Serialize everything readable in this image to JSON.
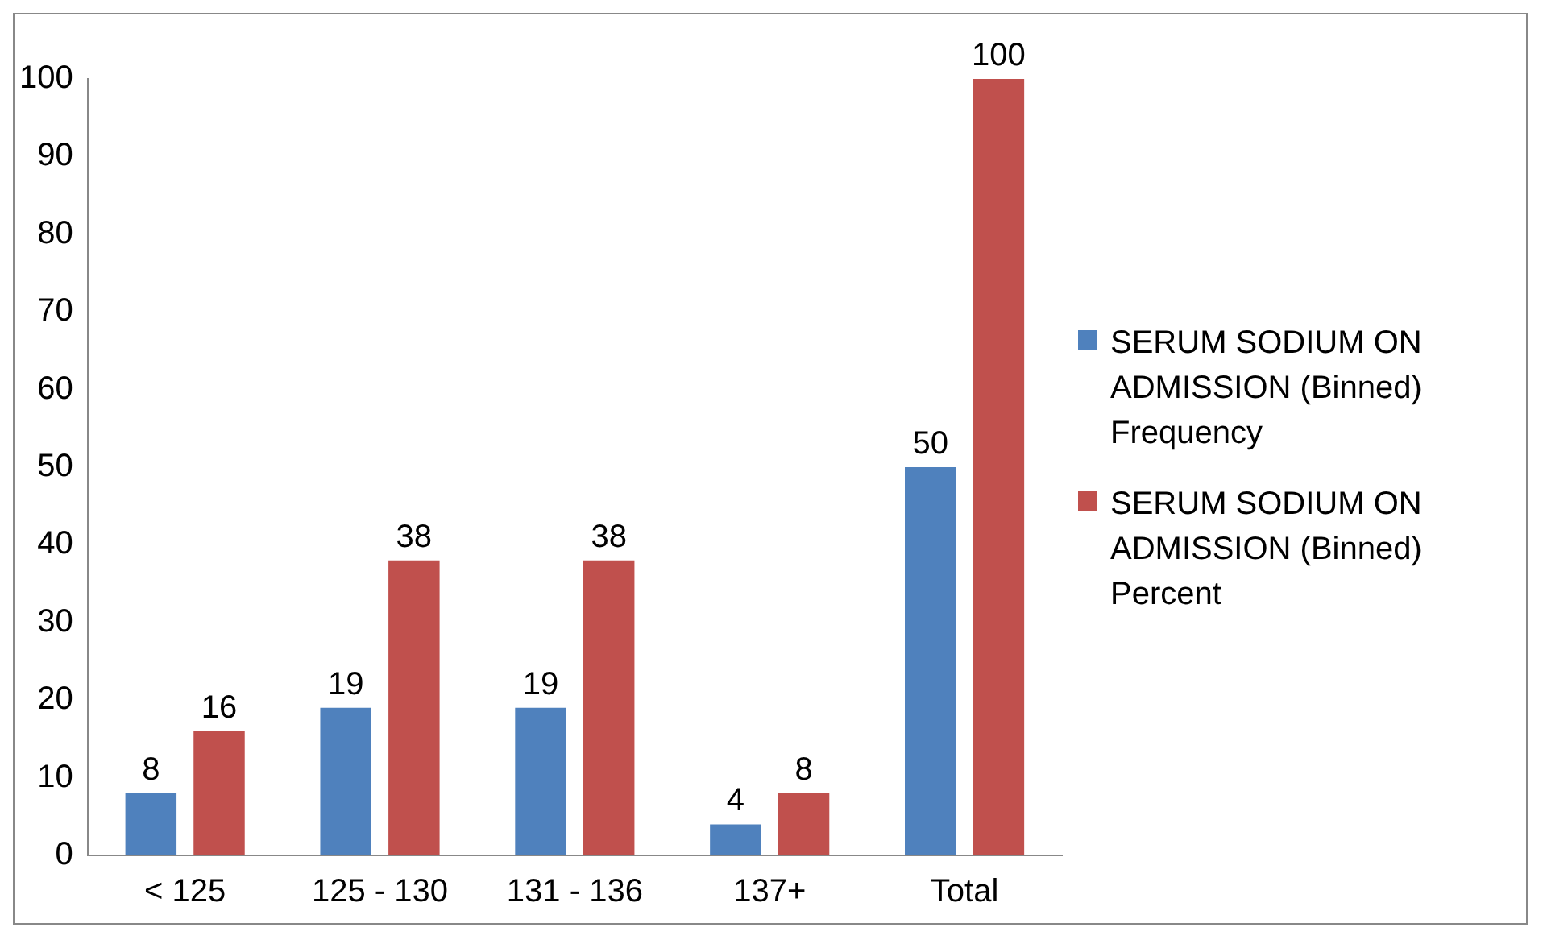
{
  "chart_data": {
    "type": "bar",
    "categories": [
      "< 125",
      "125 - 130",
      "131 - 136",
      "137+",
      "Total"
    ],
    "series": [
      {
        "name": "SERUM SODIUM ON ADMISSION (Binned) Frequency",
        "color": "#4f81bd",
        "values": [
          8,
          19,
          19,
          4,
          50
        ]
      },
      {
        "name": "SERUM SODIUM ON ADMISSION (Binned) Percent",
        "color": "#c0504d",
        "values": [
          16,
          38,
          38,
          8,
          100
        ]
      }
    ],
    "ylim": [
      0,
      100
    ],
    "yticks": [
      0,
      10,
      20,
      30,
      40,
      50,
      60,
      70,
      80,
      90,
      100
    ],
    "grid": false,
    "legend": "right",
    "data_labels": true
  }
}
